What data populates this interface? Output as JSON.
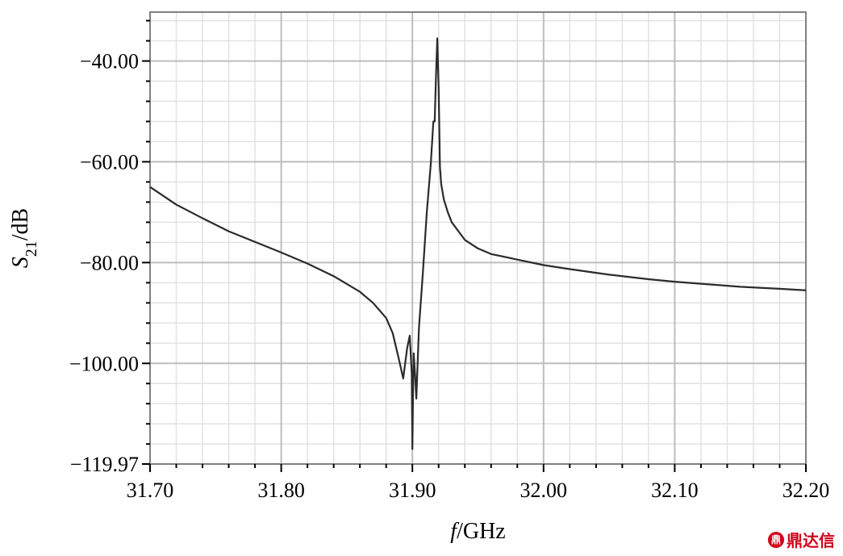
{
  "chart_data": {
    "type": "line",
    "xlabel": {
      "italic": "f",
      "rest": "/GHz"
    },
    "ylabel": {
      "italic": "S",
      "sub": "21",
      "rest": "/dB"
    },
    "xlim": [
      31.7,
      32.2
    ],
    "ylim": [
      -119.97,
      -30.3
    ],
    "x_ticks": [
      "31.70",
      "31.80",
      "31.90",
      "32.00",
      "32.10",
      "32.20"
    ],
    "y_ticks": [
      {
        "value": -40,
        "label": "−40.00"
      },
      {
        "value": -60,
        "label": "−60.00"
      },
      {
        "value": -80,
        "label": "−80.00"
      },
      {
        "value": -100,
        "label": "−100.00"
      },
      {
        "value": -119.97,
        "label": "−119.97"
      }
    ],
    "grid": true,
    "series": [
      {
        "color": "#2b2b2b",
        "x": [
          31.7,
          31.72,
          31.74,
          31.76,
          31.78,
          31.8,
          31.82,
          31.84,
          31.86,
          31.87,
          31.88,
          31.885,
          31.89,
          31.893,
          31.896,
          31.898,
          31.8995,
          31.9,
          31.9005,
          31.901,
          31.902,
          31.903,
          31.905,
          31.908,
          31.911,
          31.914,
          31.916,
          31.917,
          31.918,
          31.919,
          31.92,
          31.921,
          31.922,
          31.924,
          31.927,
          31.93,
          31.94,
          31.95,
          31.96,
          31.98,
          32.0,
          32.02,
          32.05,
          32.08,
          32.1,
          32.12,
          32.15,
          32.18,
          32.2
        ],
        "y": [
          -65.0,
          -68.5,
          -71.2,
          -73.8,
          -75.9,
          -78.0,
          -80.2,
          -82.7,
          -85.8,
          -88.0,
          -91.0,
          -94.0,
          -99.5,
          -103.0,
          -97.0,
          -94.5,
          -102.0,
          -117.0,
          -106.0,
          -98.0,
          -102.0,
          -107.0,
          -93.0,
          -82.0,
          -70.0,
          -60.5,
          -52.0,
          -52.0,
          -43.0,
          -35.5,
          -45.0,
          -61.0,
          -64.5,
          -67.5,
          -70.0,
          -72.0,
          -75.5,
          -77.2,
          -78.3,
          -79.4,
          -80.5,
          -81.3,
          -82.4,
          -83.3,
          -83.8,
          -84.2,
          -84.8,
          -85.2,
          -85.5
        ]
      }
    ]
  },
  "watermark": {
    "text": "鼎达信",
    "badge": "鼎"
  }
}
